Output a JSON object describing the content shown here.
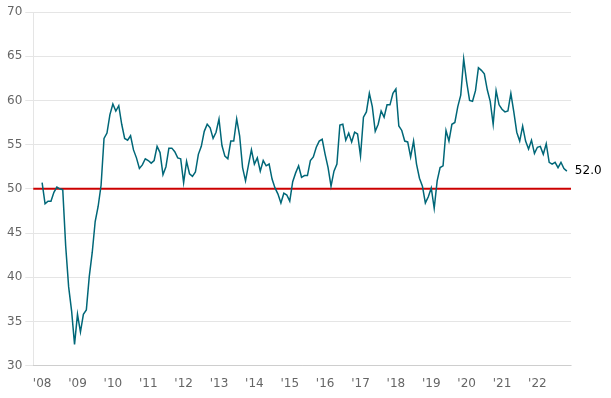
{
  "chart_data": {
    "type": "line",
    "x": [
      2008,
      2008.0833333333333,
      2008.1666666666667,
      2008.25,
      2008.3333333333333,
      2008.4166666666667,
      2008.5,
      2008.5833333333333,
      2008.6666666666667,
      2008.75,
      2008.8333333333333,
      2008.9166666666667,
      2009,
      2009.0833333333333,
      2009.1666666666667,
      2009.25,
      2009.3333333333333,
      2009.4166666666667,
      2009.5,
      2009.5833333333333,
      2009.6666666666667,
      2009.75,
      2009.8333333333333,
      2009.9166666666667,
      2010,
      2010.0833333333333,
      2010.1666666666667,
      2010.25,
      2010.3333333333333,
      2010.4166666666667,
      2010.5,
      2010.5833333333333,
      2010.6666666666667,
      2010.75,
      2010.8333333333333,
      2010.9166666666667,
      2011,
      2011.0833333333333,
      2011.1666666666667,
      2011.25,
      2011.3333333333333,
      2011.4166666666667,
      2011.5,
      2011.5833333333333,
      2011.6666666666667,
      2011.75,
      2011.8333333333333,
      2011.9166666666667,
      2012,
      2012.0833333333333,
      2012.1666666666667,
      2012.25,
      2012.3333333333333,
      2012.4166666666667,
      2012.5,
      2012.5833333333333,
      2012.6666666666667,
      2012.75,
      2012.8333333333333,
      2012.9166666666667,
      2013,
      2013.0833333333333,
      2013.1666666666667,
      2013.25,
      2013.3333333333333,
      2013.4166666666667,
      2013.5,
      2013.5833333333333,
      2013.6666666666667,
      2013.75,
      2013.8333333333333,
      2013.9166666666667,
      2014,
      2014.0833333333333,
      2014.1666666666667,
      2014.25,
      2014.3333333333333,
      2014.4166666666667,
      2014.5,
      2014.5833333333333,
      2014.6666666666667,
      2014.75,
      2014.8333333333333,
      2014.9166666666667,
      2015,
      2015.0833333333333,
      2015.1666666666667,
      2015.25,
      2015.3333333333333,
      2015.4166666666667,
      2015.5,
      2015.5833333333333,
      2015.6666666666667,
      2015.75,
      2015.8333333333333,
      2015.9166666666667,
      2016,
      2016.0833333333333,
      2016.1666666666667,
      2016.25,
      2016.3333333333333,
      2016.4166666666667,
      2016.5,
      2016.5833333333333,
      2016.6666666666667,
      2016.75,
      2016.8333333333333,
      2016.9166666666667,
      2017,
      2017.0833333333333,
      2017.1666666666667,
      2017.25,
      2017.3333333333333,
      2017.4166666666667,
      2017.5,
      2017.5833333333333,
      2017.6666666666667,
      2017.75,
      2017.8333333333333,
      2017.9166666666667,
      2018,
      2018.0833333333333,
      2018.1666666666667,
      2018.25,
      2018.3333333333333,
      2018.4166666666667,
      2018.5,
      2018.5833333333333,
      2018.6666666666667,
      2018.75,
      2018.8333333333333,
      2018.9166666666667,
      2019,
      2019.0833333333333,
      2019.1666666666667,
      2019.25,
      2019.3333333333333,
      2019.4166666666667,
      2019.5,
      2019.5833333333333,
      2019.6666666666667,
      2019.75,
      2019.8333333333333,
      2019.9166666666667,
      2020,
      2020.0833333333333,
      2020.1666666666667,
      2020.25,
      2020.3333333333333,
      2020.4166666666667,
      2020.5,
      2020.5833333333333,
      2020.6666666666667,
      2020.75,
      2020.8333333333333,
      2020.9166666666667,
      2021,
      2021.0833333333333,
      2021.1666666666667,
      2021.25,
      2021.3333333333333,
      2021.4166666666667,
      2021.5,
      2021.5833333333333,
      2021.6666666666667,
      2021.75,
      2021.8333333333333,
      2021.9166666666667,
      2022,
      2022.0833333333333,
      2022.1666666666667,
      2022.25,
      2022.3333333333333,
      2022.4166666666667,
      2022.5,
      2022.5833333333333,
      2022.6666666666667,
      2022.75,
      2022.8333333333333
    ],
    "series": [
      {
        "color": "#006778",
        "values": [
          50.7,
          48.3,
          48.6,
          48.6,
          49.6,
          50.2,
          50.0,
          49.9,
          43.5,
          38.9,
          36.2,
          32.4,
          35.8,
          33.8,
          35.8,
          36.3,
          40.1,
          42.8,
          46.3,
          48.0,
          50.4,
          55.7,
          56.3,
          58.4,
          59.6,
          58.8,
          59.4,
          57.3,
          55.7,
          55.5,
          56.0,
          54.4,
          53.5,
          52.3,
          52.7,
          53.4,
          53.2,
          52.9,
          53.2,
          54.8,
          54.1,
          51.6,
          52.5,
          54.6,
          54.6,
          54.2,
          53.5,
          53.4,
          50.7,
          53.1,
          51.7,
          51.4,
          51.9,
          53.9,
          54.8,
          56.5,
          57.3,
          56.9,
          55.7,
          56.4,
          57.9,
          54.9,
          53.7,
          53.4,
          55.4,
          55.4,
          57.9,
          56.0,
          52.4,
          50.9,
          52.7,
          54.4,
          52.8,
          53.5,
          52.0,
          53.2,
          52.6,
          52.8,
          51.1,
          50.1,
          49.4,
          48.4,
          49.5,
          49.3,
          48.6,
          50.8,
          51.8,
          52.6,
          51.3,
          51.5,
          51.5,
          53.2,
          53.6,
          54.7,
          55.4,
          55.6,
          53.9,
          52.4,
          50.3,
          52.0,
          52.8,
          57.2,
          57.3,
          55.5,
          56.3,
          55.3,
          56.4,
          56.2,
          53.7,
          58.1,
          58.7,
          60.8,
          59.3,
          56.5,
          57.3,
          58.8,
          58.1,
          59.5,
          59.5,
          60.8,
          61.3,
          57.1,
          56.6,
          55.4,
          55.3,
          53.6,
          55.4,
          52.8,
          51.2,
          50.3,
          48.4,
          49.1,
          50.1,
          47.8,
          50.9,
          52.4,
          52.6,
          56.6,
          55.4,
          57.3,
          57.5,
          59.3,
          60.6,
          64.7,
          62.1,
          60.0,
          59.9,
          61.1,
          63.7,
          63.4,
          63.0,
          61.2,
          59.9,
          57.3,
          61.1,
          59.5,
          59.0,
          58.7,
          58.8,
          60.8,
          58.7,
          56.4,
          55.4,
          57.1,
          55.4,
          54.5,
          55.5,
          54.0,
          54.7,
          54.8,
          53.9,
          55.1,
          53.0,
          52.8,
          53.0,
          52.4,
          53.0,
          52.3,
          52.0
        ]
      }
    ],
    "reference_lines": [
      {
        "value": 50,
        "color": "#cc0000"
      }
    ],
    "annotations": [
      {
        "text": "52.0"
      }
    ],
    "xlim": [
      2007.75,
      2022.95
    ],
    "xticks": [
      {
        "value": 2008,
        "label": "'08"
      },
      {
        "value": 2009,
        "label": "'09"
      },
      {
        "value": 2010,
        "label": "'10"
      },
      {
        "value": 2011,
        "label": "'11"
      },
      {
        "value": 2012,
        "label": "'12"
      },
      {
        "value": 2013,
        "label": "'13"
      },
      {
        "value": 2014,
        "label": "'14"
      },
      {
        "value": 2015,
        "label": "'15"
      },
      {
        "value": 2016,
        "label": "'16"
      },
      {
        "value": 2017,
        "label": "'17"
      },
      {
        "value": 2018,
        "label": "'18"
      },
      {
        "value": 2019,
        "label": "'19"
      },
      {
        "value": 2020,
        "label": "'20"
      },
      {
        "value": 2021,
        "label": "'21"
      },
      {
        "value": 2022,
        "label": "'22"
      }
    ],
    "ylim": [
      30,
      70
    ],
    "yticks": [
      30,
      35,
      40,
      45,
      50,
      55,
      60,
      65,
      70
    ],
    "grid": "y"
  }
}
